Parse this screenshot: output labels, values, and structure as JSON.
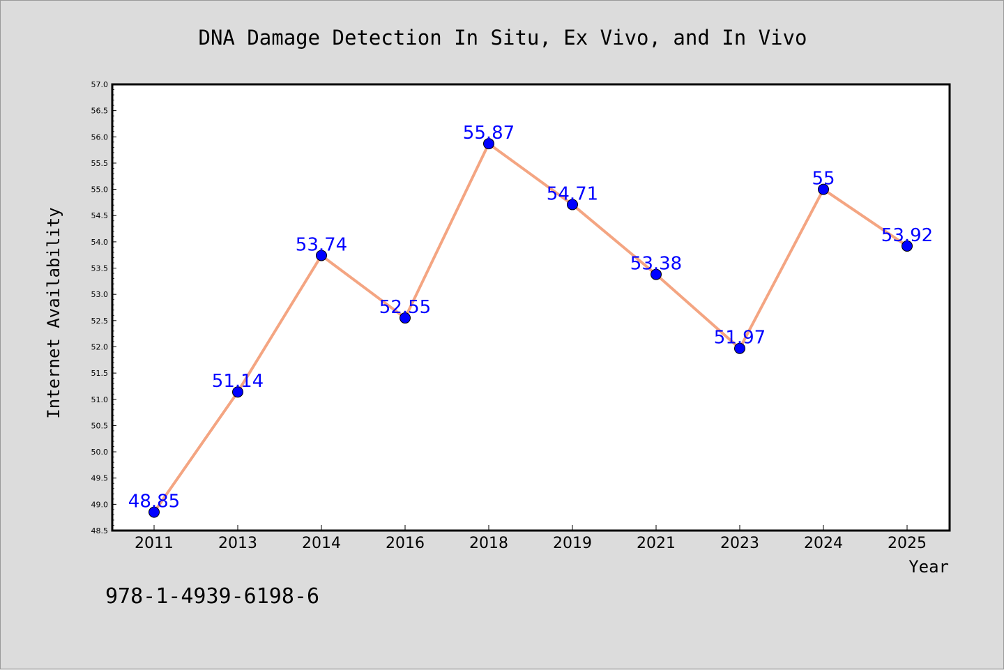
{
  "chart_data": {
    "type": "line",
    "title": "DNA Damage Detection In Situ, Ex Vivo, and In Vivo",
    "xlabel": "Year",
    "ylabel": "Internet Availability",
    "categories": [
      "2011",
      "2013",
      "2014",
      "2016",
      "2018",
      "2019",
      "2021",
      "2023",
      "2024",
      "2025"
    ],
    "series": [
      {
        "values": [
          48.85,
          51.14,
          53.74,
          52.55,
          55.87,
          54.71,
          53.38,
          51.97,
          55,
          53.92
        ],
        "data_labels": [
          "48.85",
          "51.14",
          "53.74",
          "52.55",
          "55.87",
          "54.71",
          "53.38",
          "51.97",
          "55",
          "53.92"
        ],
        "line_color": "#f4a582",
        "marker_color": "#0000ff"
      }
    ],
    "ylim": [
      48.5,
      57.0
    ],
    "yticks": [
      "48.5",
      "49.0",
      "49.5",
      "50.0",
      "50.5",
      "51.0",
      "51.5",
      "52.0",
      "52.5",
      "53.0",
      "53.5",
      "54.0",
      "54.5",
      "55.0",
      "55.5",
      "56.0",
      "56.5",
      "57.0"
    ],
    "label_color": "#0000ff",
    "grid": false,
    "legend": "none"
  },
  "footer": {
    "isbn": "978-1-4939-6198-6"
  }
}
